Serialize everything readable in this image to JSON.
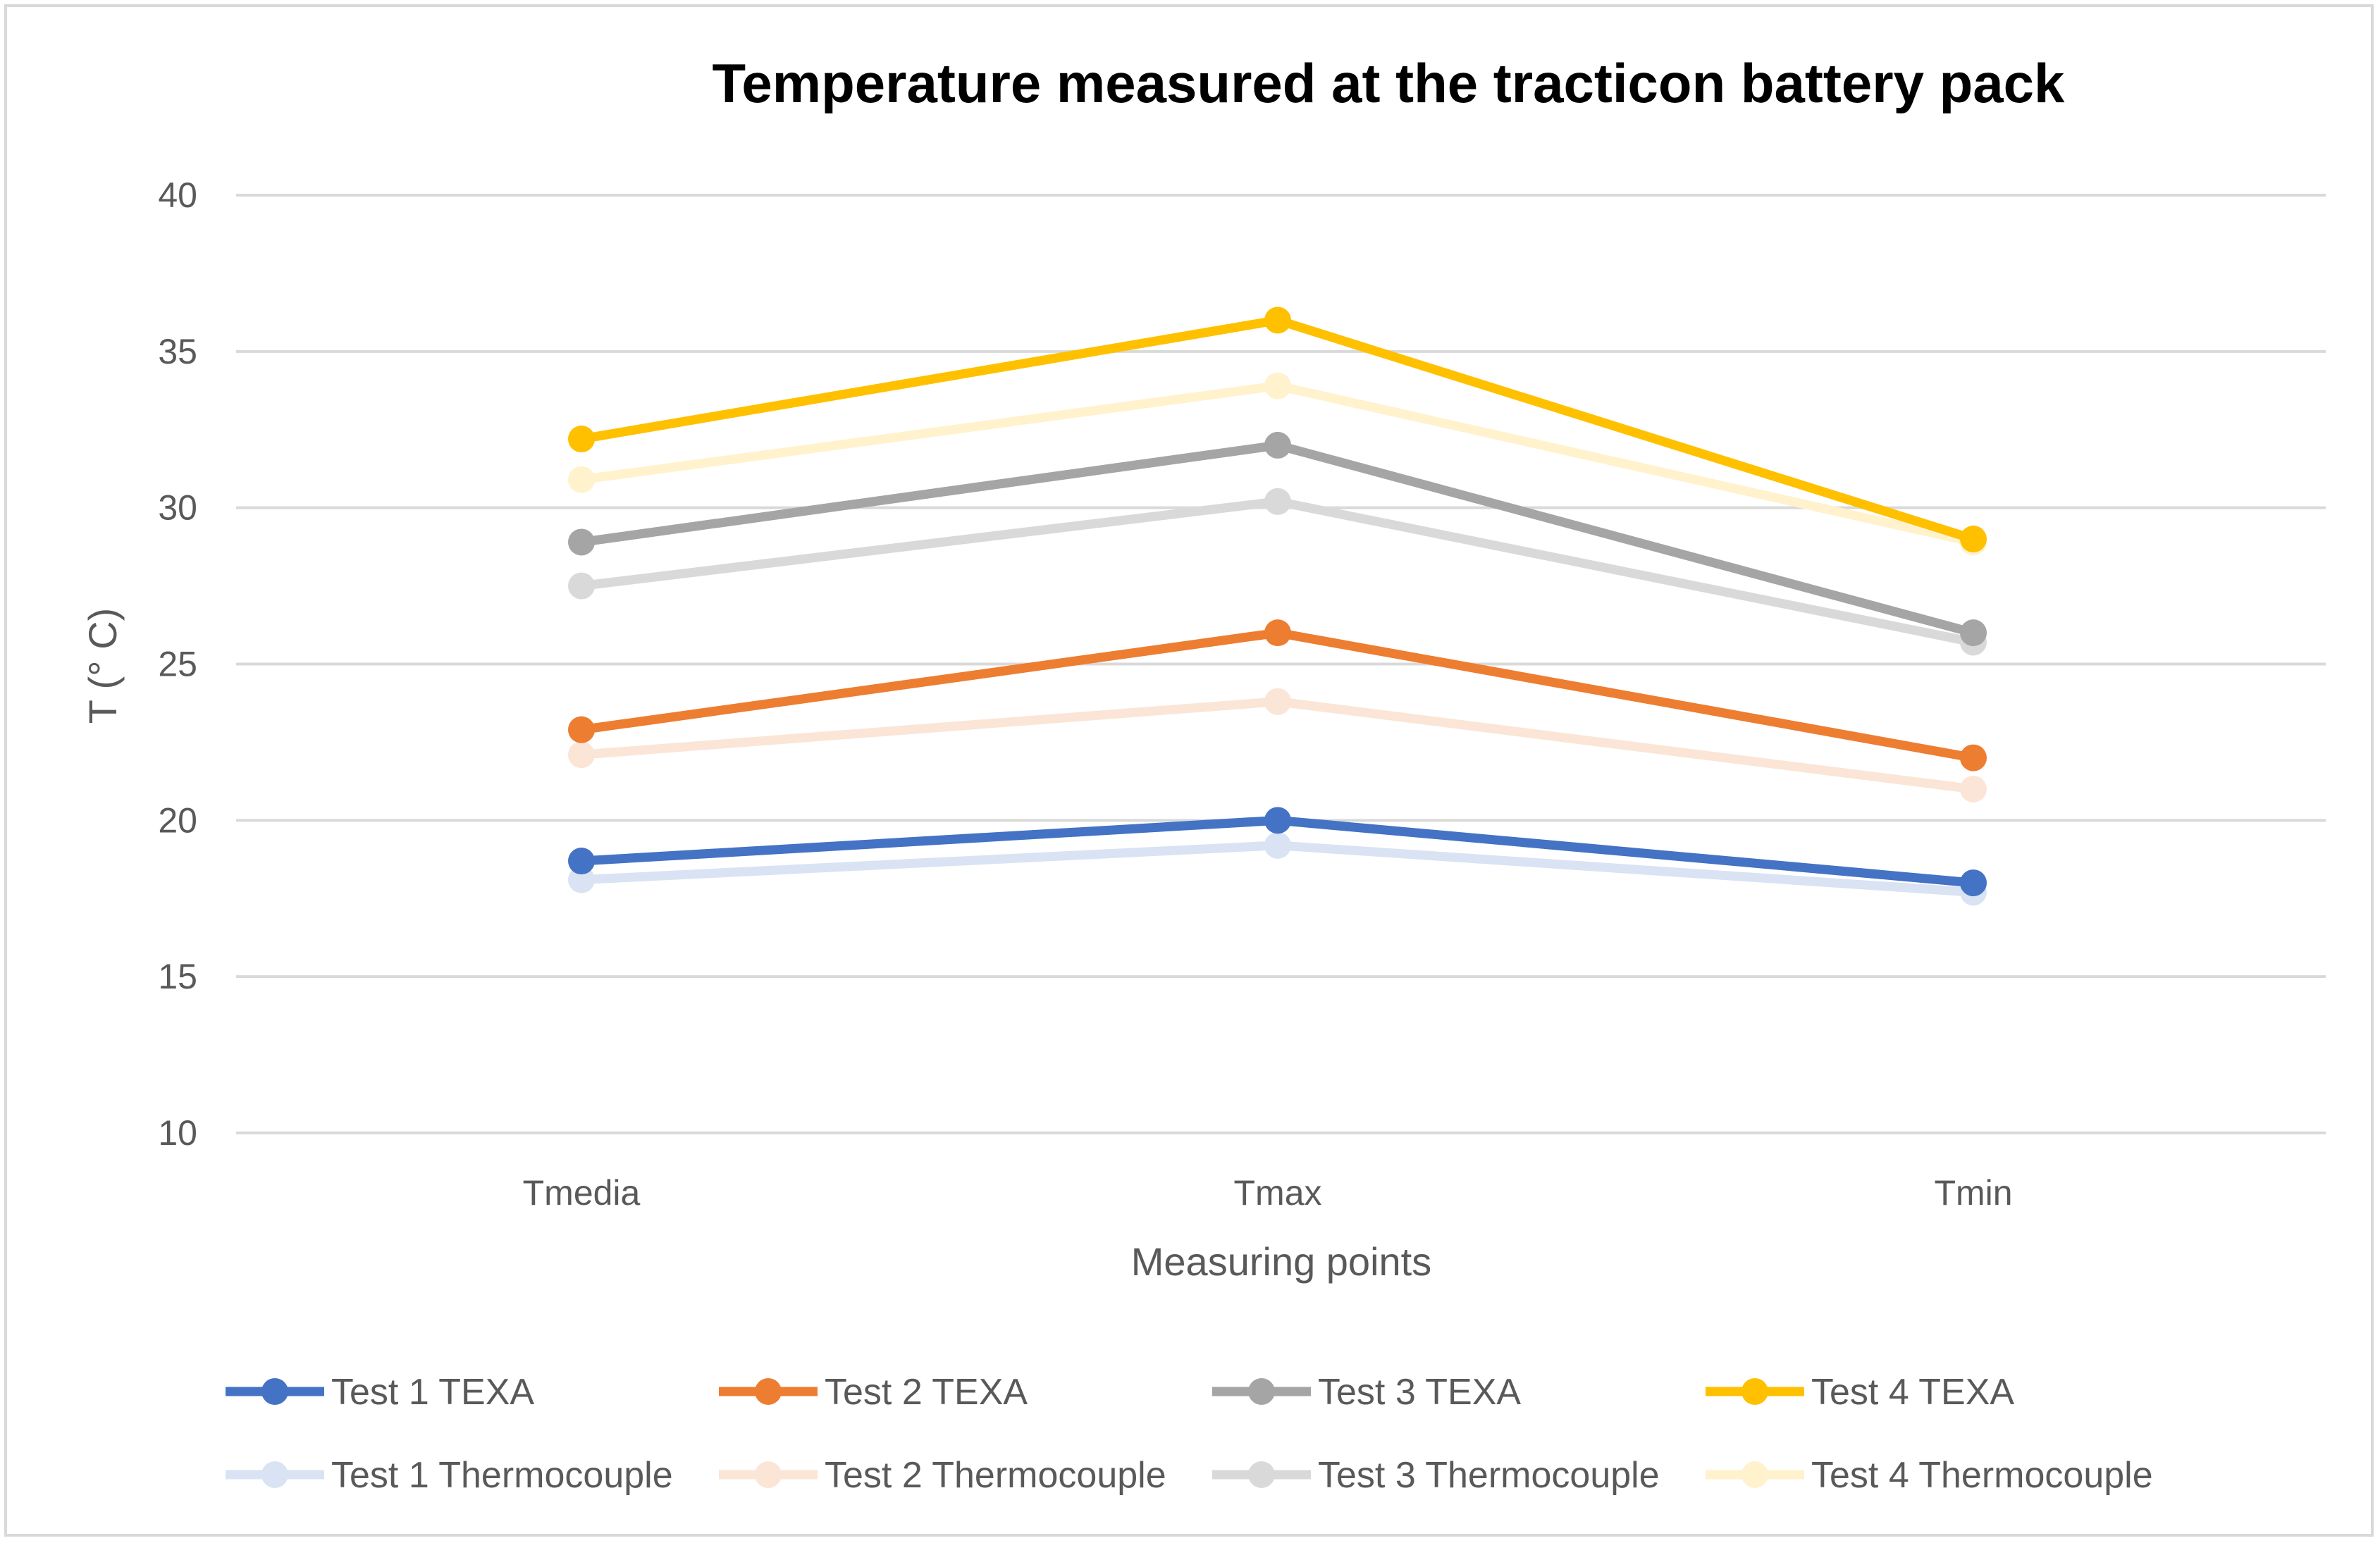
{
  "chart_data": {
    "type": "line",
    "title": "Temperature measured at the tracticon battery pack",
    "xlabel": "Measuring points",
    "ylabel": "T (° C)",
    "categories": [
      "Tmedia",
      "Tmax",
      "Tmin"
    ],
    "ylim": [
      10,
      40
    ],
    "yticks": [
      10,
      15,
      20,
      25,
      30,
      35,
      40
    ],
    "grid": true,
    "legend_position": "bottom",
    "series": [
      {
        "name": "Test 1 TEXA",
        "color": "#4472c4",
        "values": [
          18.7,
          20.0,
          18.0
        ]
      },
      {
        "name": "Test 2 TEXA",
        "color": "#ed7d31",
        "values": [
          22.9,
          26.0,
          22.0
        ]
      },
      {
        "name": "Test 3 TEXA",
        "color": "#a5a5a5",
        "values": [
          28.9,
          32.0,
          26.0
        ]
      },
      {
        "name": "Test 4 TEXA",
        "color": "#ffc000",
        "values": [
          32.2,
          36.0,
          29.0
        ]
      },
      {
        "name": "Test 1 Thermocouple",
        "color": "#dae3f3",
        "values": [
          18.1,
          19.2,
          17.7
        ]
      },
      {
        "name": "Test 2 Thermocouple",
        "color": "#fbe5d6",
        "values": [
          22.1,
          23.8,
          21.0
        ]
      },
      {
        "name": "Test 3 Thermocouple",
        "color": "#d9d9d9",
        "values": [
          27.5,
          30.2,
          25.7
        ]
      },
      {
        "name": "Test 4 Thermocouple",
        "color": "#fff2cc",
        "values": [
          30.9,
          33.9,
          28.9
        ]
      }
    ]
  }
}
